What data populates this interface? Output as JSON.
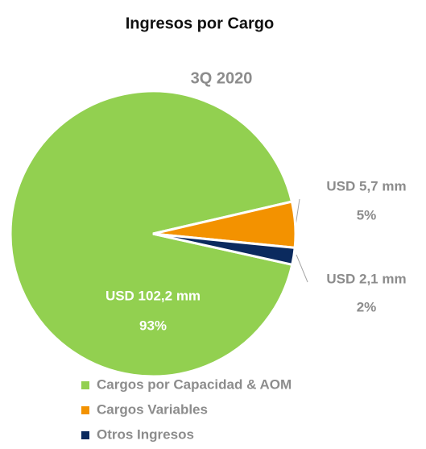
{
  "chart_data": {
    "type": "pie",
    "title": "Ingresos por Cargo",
    "subtitle": "3Q 2020",
    "categories": [
      "Cargos por Capacidad & AOM",
      "Cargos Variables",
      "Otros Ingresos"
    ],
    "values": [
      102.2,
      5.7,
      2.1
    ],
    "value_labels": [
      "USD 102,2 mm",
      "USD 5,7 mm",
      "USD 2,1 mm"
    ],
    "percents": [
      93,
      5,
      2
    ],
    "percent_labels": [
      "93%",
      "5%",
      "2%"
    ],
    "colors": [
      "#92d050",
      "#f39200",
      "#0b2a5e"
    ],
    "legend": "bottom"
  }
}
